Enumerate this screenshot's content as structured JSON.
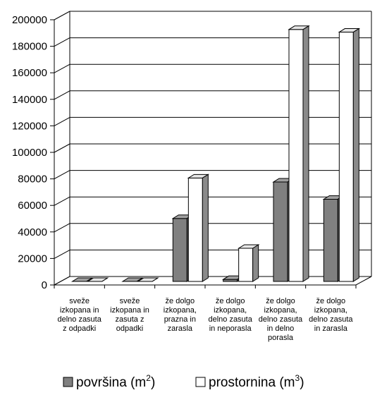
{
  "chart_data": {
    "type": "bar",
    "style": "3d-clustered-column",
    "categories": [
      [
        "sveže",
        "izkopana in",
        "delno zasuta",
        "z odpadki"
      ],
      [
        "sveže",
        "izkopana in",
        "zasuta z",
        "odpadki"
      ],
      [
        "že dolgo",
        "izkopana,",
        "prazna in",
        "zarasla"
      ],
      [
        "že dolgo",
        "izkopana,",
        "delno zasuta",
        "in neporasla"
      ],
      [
        "že dolgo",
        "izkopana,",
        "delno zasuta",
        "in delno",
        "porasla"
      ],
      [
        "že dolgo",
        "izkopana,",
        "delno zasuta",
        "in zarasla"
      ]
    ],
    "series": [
      {
        "name": "površina (m",
        "sup": "2",
        "close": ")",
        "color": "#808080",
        "side": "#5a5a5a",
        "top": "#a0a0a0",
        "values": [
          0,
          0,
          47500,
          1500,
          75000,
          62000
        ]
      },
      {
        "name": "prostornina (m",
        "sup": "3",
        "close": ")",
        "color": "#ffffff",
        "side": "#8a8a8a",
        "top": "#e6e6e6",
        "values": [
          0,
          0,
          78000,
          25000,
          190000,
          188000
        ]
      }
    ],
    "ylim": [
      0,
      200000
    ],
    "yticks": [
      0,
      20000,
      40000,
      60000,
      80000,
      100000,
      120000,
      140000,
      160000,
      180000,
      200000
    ],
    "grid": true,
    "legend": "bottom"
  }
}
